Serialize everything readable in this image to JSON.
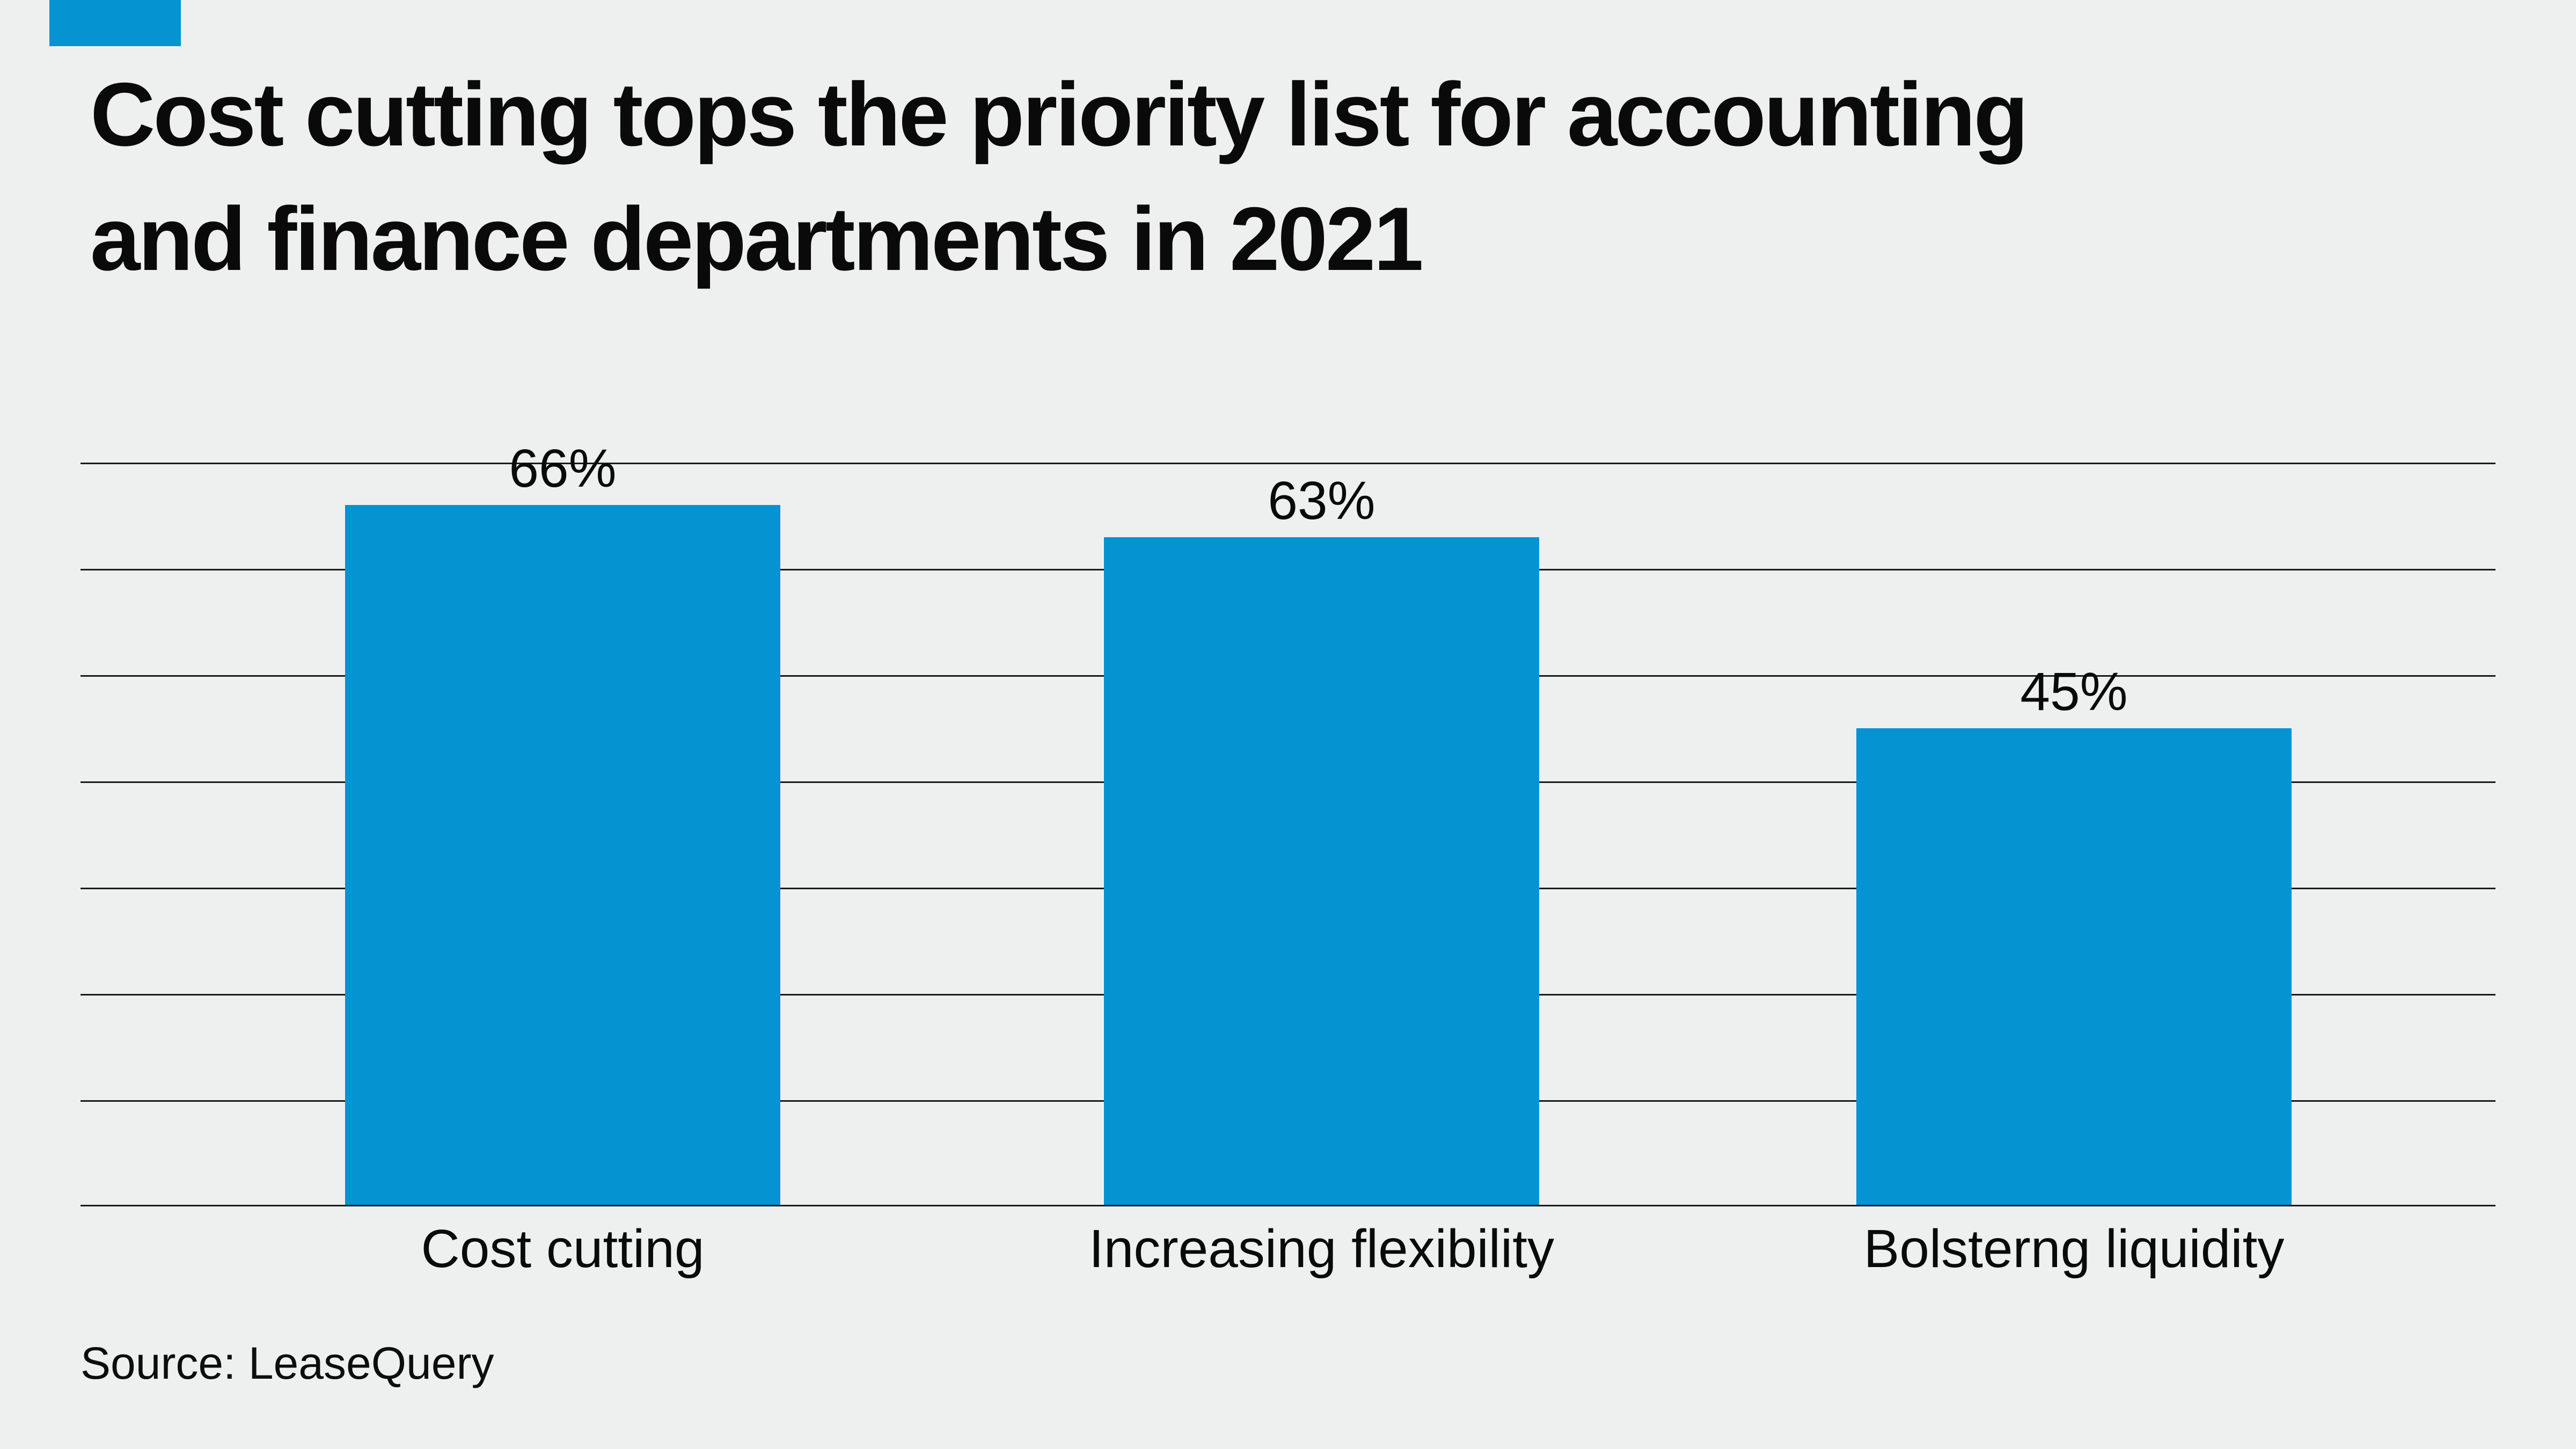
{
  "header": {
    "title_lines": [
      "Cost cutting tops the priority list for accounting",
      "and finance departments in 2021"
    ]
  },
  "source": {
    "label": "Source: LeaseQuery"
  },
  "colors": {
    "bar": "#0593D1",
    "accent_tab": "#0593D1",
    "background": "#EEF0EF",
    "gridline": "#1A1A1A",
    "text": "#0A0A0A"
  },
  "chart_data": {
    "type": "bar",
    "title": "Cost cutting tops the priority list for accounting and finance departments in 2021",
    "categories": [
      "Cost cutting",
      "Increasing flexibility",
      "Bolsterng liquidity"
    ],
    "values": [
      66,
      63,
      45
    ],
    "value_labels": [
      "66%",
      "63%",
      "45%"
    ],
    "xlabel": "",
    "ylabel": "",
    "ylim": [
      0,
      70
    ],
    "gridline_step": 10,
    "grid": true,
    "legend": false,
    "source": "Source: LeaseQuery"
  }
}
